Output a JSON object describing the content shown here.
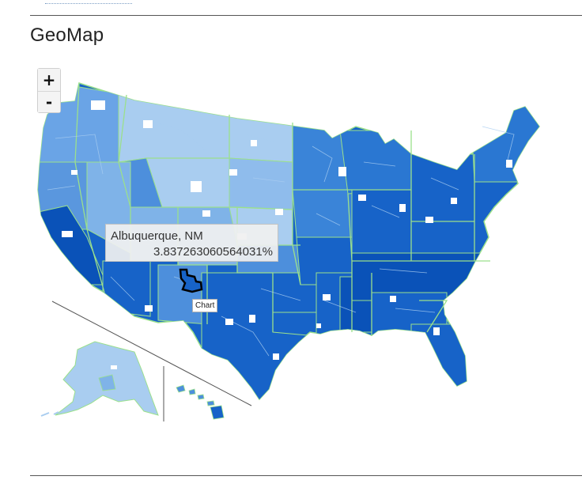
{
  "section_title": "GeoMap",
  "zoom": {
    "in_label": "+",
    "out_label": "-"
  },
  "tooltip": {
    "region": "Albuquerque, NM",
    "value": "3.837263060564031%"
  },
  "chart_link_label": "Chart",
  "map": {
    "region": "United States (states with sub-regions), Alaska and Hawaii insets",
    "colors": {
      "border": "#9be08c",
      "light": "#a9cdf0",
      "light_mid": "#7fb3e8",
      "mid": "#4d8fdc",
      "dark": "#1763c8",
      "darker": "#0a52b8",
      "missing": "#ffffff",
      "selected_outline": "#000000"
    },
    "selected_region": "Albuquerque, NM"
  }
}
